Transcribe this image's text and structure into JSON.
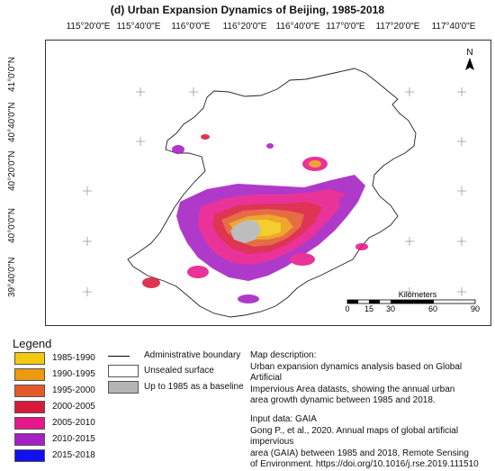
{
  "title": "(d)  Urban Expansion Dynamics of Beijing, 1985-2018",
  "longitude_ticks": [
    "115°20'0\"E",
    "115°40'0\"E",
    "116°0'0\"E",
    "116°20'0\"E",
    "116°40'0\"E",
    "117°0'0\"E",
    "117°20'0\"E",
    "117°40'0\"E"
  ],
  "latitude_ticks": [
    "41°0'0\"N",
    "40°40'0\"N",
    "40°20'0\"N",
    "40°0'0\"N",
    "39°40'0\"N"
  ],
  "north_label": "N",
  "scale_bar": {
    "title": "Kilometers",
    "labels": [
      "0",
      "15",
      "30",
      "60",
      "90"
    ]
  },
  "legend": {
    "title": "Legend",
    "items": [
      {
        "label": "1985-1990",
        "color": "#f2c811"
      },
      {
        "label": "1990-1995",
        "color": "#eb9a12"
      },
      {
        "label": "1995-2000",
        "color": "#e35a2a"
      },
      {
        "label": "2000-2005",
        "color": "#d91a3c"
      },
      {
        "label": "2005-2010",
        "color": "#e8178c"
      },
      {
        "label": "2010-2015",
        "color": "#a51fc3"
      },
      {
        "label": "2015-2018",
        "color": "#1010f0"
      }
    ],
    "reference": [
      {
        "label": "Administrative boundary",
        "kind": "line"
      },
      {
        "label": "Unsealed surface",
        "kind": "box",
        "color": "#ffffff"
      },
      {
        "label": "Up to 1985 as a baseline",
        "kind": "box",
        "color": "#b4b4b4"
      }
    ]
  },
  "description": {
    "heading": "Map description:",
    "lines": [
      "Urban expansion dynamics analysis based on Global Artificial",
      "Impervious Area datasts, showing the annual urban",
      "area growth dynamic between 1985 and 2018."
    ]
  },
  "input_data": {
    "heading": "Input data: GAIA",
    "lines": [
      "Gong P., et al., 2020. Annual maps of global artificial impervious",
      "area (GAIA) between 1985 and 2018, Remote Sensing",
      "of Environment. https://doi.org/10.1016/j.rse.2019.111510"
    ]
  }
}
